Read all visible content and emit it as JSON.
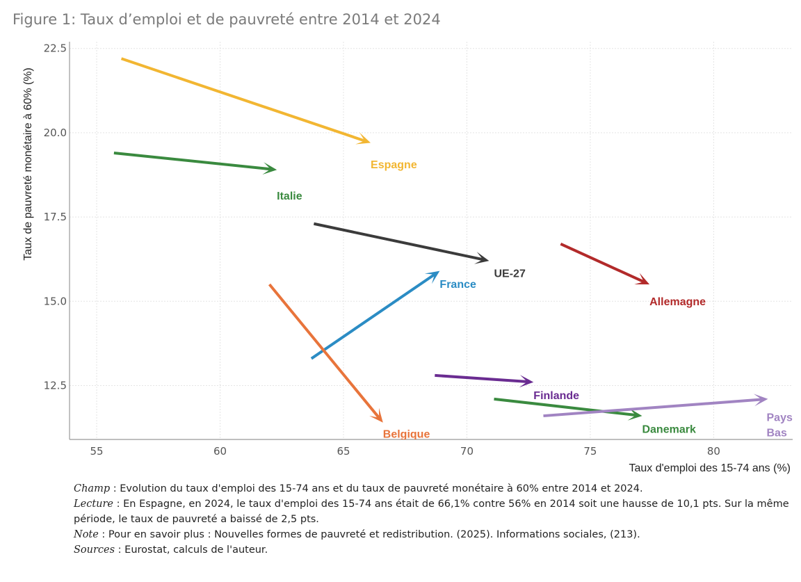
{
  "figure_title": "Figure 1: Taux d’emploi et de pauvreté entre 2014 et 2024",
  "chart_data": {
    "type": "arrow-scatter",
    "xlabel": "Taux d'emploi des 15-74 ans (%)",
    "ylabel": "Taux de pauvreté monétaire à 60% (%)",
    "xlim": [
      53.9,
      83.2
    ],
    "ylim": [
      10.9,
      22.7
    ],
    "xticks": [
      55,
      60,
      65,
      70,
      75,
      80
    ],
    "xtick_labels": [
      "55",
      "60",
      "65",
      "70",
      "75",
      "80"
    ],
    "yticks": [
      12.5,
      15.0,
      17.5,
      20.0,
      22.5
    ],
    "ytick_labels": [
      "12.5",
      "15.0",
      "17.5",
      "20.0",
      "22.5"
    ],
    "grid": true,
    "series": [
      {
        "name": "Espagne",
        "color": "#f2b632",
        "x0": 56.0,
        "y0": 22.2,
        "x1": 66.1,
        "y1": 19.7,
        "label_dx": 0.0,
        "label_dy": -0.65
      },
      {
        "name": "Italie",
        "color": "#3a8a3f",
        "x0": 55.7,
        "y0": 19.4,
        "x1": 62.3,
        "y1": 18.9,
        "label_dx": 0.0,
        "label_dy": -0.78
      },
      {
        "name": "UE-27",
        "color": "#3b3b3b",
        "x0": 63.8,
        "y0": 17.3,
        "x1": 70.9,
        "y1": 16.2,
        "label_dx": 0.2,
        "label_dy": -0.38
      },
      {
        "name": "Allemagne",
        "color": "#b22a2a",
        "x0": 73.8,
        "y0": 16.7,
        "x1": 77.4,
        "y1": 15.5,
        "label_dx": 0.0,
        "label_dy": -0.52
      },
      {
        "name": "France",
        "color": "#2b8cc4",
        "x0": 63.7,
        "y0": 13.3,
        "x1": 68.9,
        "y1": 15.9,
        "label_dx": 0.0,
        "label_dy": -0.4
      },
      {
        "name": "Belgique",
        "color": "#e8743b",
        "x0": 62.0,
        "y0": 15.5,
        "x1": 66.6,
        "y1": 11.4,
        "label_dx": 0.0,
        "label_dy": -0.35
      },
      {
        "name": "Finlande",
        "color": "#6a2c91",
        "x0": 68.7,
        "y0": 12.8,
        "x1": 72.7,
        "y1": 12.6,
        "label_dx": 0.0,
        "label_dy": -0.4
      },
      {
        "name": "Danemark",
        "color": "#3a8a3f",
        "x0": 71.1,
        "y0": 12.1,
        "x1": 77.1,
        "y1": 11.6,
        "label_dx": 0.0,
        "label_dy": -0.4
      },
      {
        "name": "Pays-Bas",
        "color": "#a184c2",
        "x0": 73.1,
        "y0": 11.6,
        "x1": 82.2,
        "y1": 12.1,
        "label_dx": 0.0,
        "label_dy": -0.55
      }
    ]
  },
  "notes": [
    {
      "label": "Champ",
      "text": " : Evolution du taux d'emploi des 15-74 ans et du taux de pauvreté monétaire à 60% entre 2014 et 2024."
    },
    {
      "label": "Lecture",
      "text": " : En Espagne, en 2024, le taux d'emploi des 15-74 ans était de 66,1% contre 56% en 2014 soit une hausse de 10,1 pts. Sur la même période, le taux de pauvreté a baissé de 2,5 pts."
    },
    {
      "label": "Note",
      "text": " : Pour en savoir plus : Nouvelles formes de pauvreté et redistribution. (2025). Informations sociales, (213)."
    },
    {
      "label": "Sources",
      "text": " : Eurostat, calculs de l'auteur."
    }
  ]
}
